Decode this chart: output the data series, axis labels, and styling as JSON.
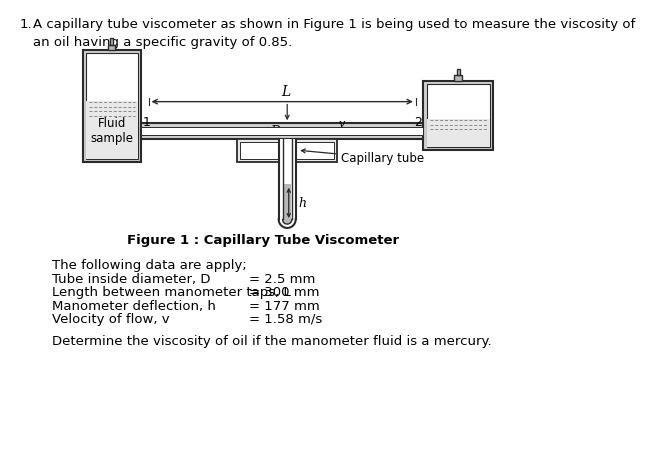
{
  "title_number": "1.",
  "title_text": "A capillary tube viscometer as shown in Figure 1 is being used to measure the viscosity of\nan oil having a specific gravity of 0.85.",
  "figure_caption": "Figure 1 : Capillary Tube Viscometer",
  "data_header": "The following data are apply;",
  "data_rows": [
    [
      "Tube inside diameter, D",
      "= 2.5 mm"
    ],
    [
      "Length between manometer taps, L",
      "= 300 mm"
    ],
    [
      "Manometer deflection, h",
      "= 177 mm"
    ],
    [
      "Velocity of flow, v",
      "= 1.58 m/s"
    ]
  ],
  "question": "Determine the viscosity of oil if the manometer fluid is a mercury.",
  "bg_color": "#ffffff",
  "draw_color": "#2a2a2a",
  "gray_fill": "#b8b8b8",
  "med_gray": "#d0d0d0",
  "light_gray": "#e8e8e8",
  "dark_gray": "#888888"
}
